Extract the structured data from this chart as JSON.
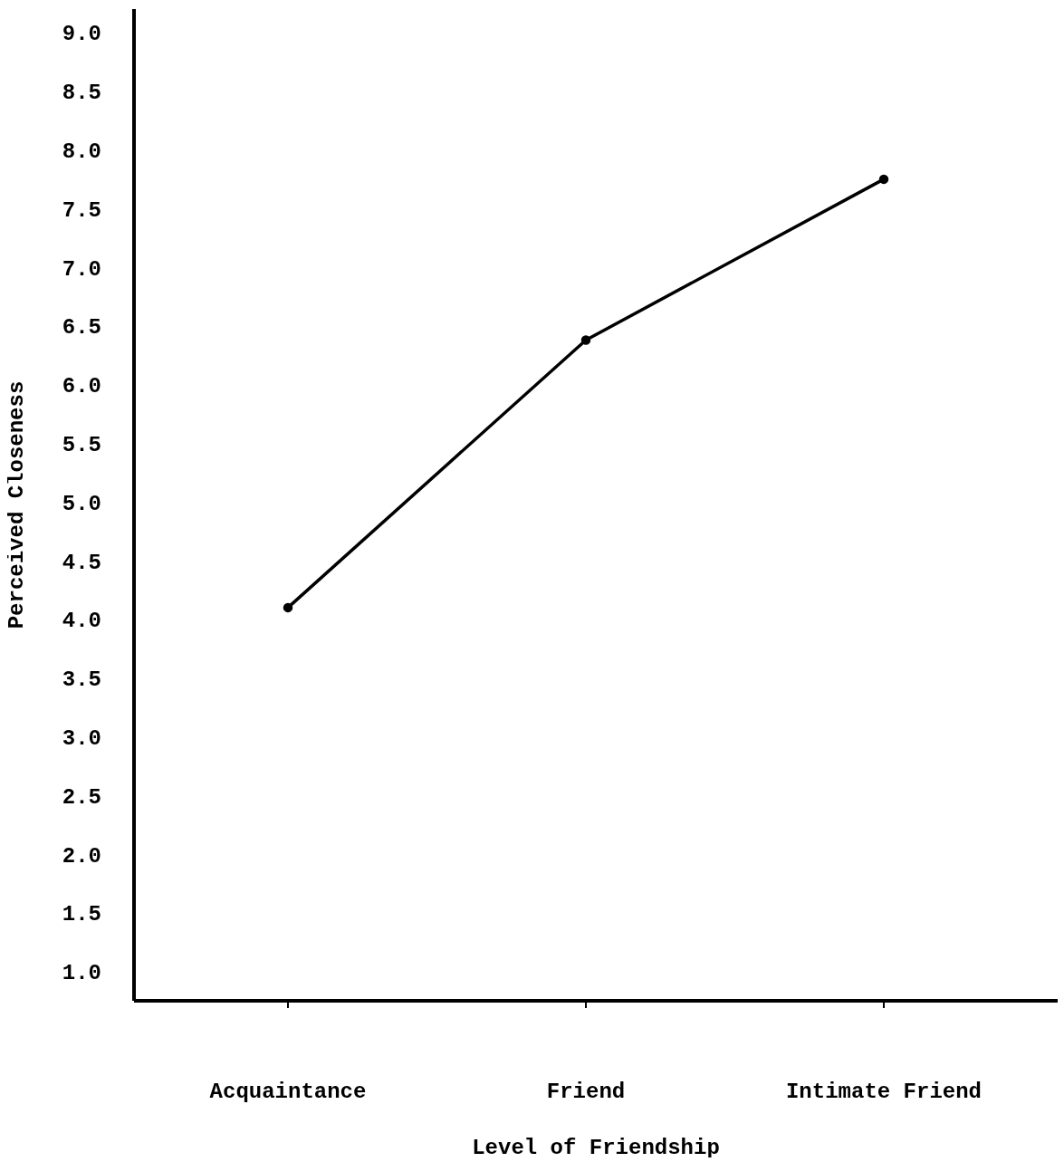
{
  "chart_data": {
    "type": "line",
    "xlabel": "Level of Friendship",
    "ylabel": "Perceived Closeness",
    "categories": [
      "Acquaintance",
      "Friend",
      "Intimate Friend"
    ],
    "series": [
      {
        "color": "#000000",
        "values": [
          4.1,
          6.38,
          7.75
        ]
      }
    ],
    "ylim": [
      0.75,
      9.2
    ],
    "yticks": [
      {
        "value": 1,
        "label": "1.0"
      },
      {
        "value": 1.5,
        "label": "1.5"
      },
      {
        "value": 2,
        "label": "2.0"
      },
      {
        "value": 2.5,
        "label": "2.5"
      },
      {
        "value": 3,
        "label": "3.0"
      },
      {
        "value": 3.5,
        "label": "3.5"
      },
      {
        "value": 4,
        "label": "4.0"
      },
      {
        "value": 4.5,
        "label": "4.5"
      },
      {
        "value": 5,
        "label": "5.0"
      },
      {
        "value": 5.5,
        "label": "5.5"
      },
      {
        "value": 6,
        "label": "6.0"
      },
      {
        "value": 6.5,
        "label": "6.5"
      },
      {
        "value": 7,
        "label": "7.0"
      },
      {
        "value": 7.5,
        "label": "7.5"
      },
      {
        "value": 8,
        "label": "8.0"
      },
      {
        "value": 8.5,
        "label": "8.5"
      },
      {
        "value": 9,
        "label": "9.0"
      }
    ],
    "marker": "circle",
    "line_style": "solid",
    "grid": false
  }
}
